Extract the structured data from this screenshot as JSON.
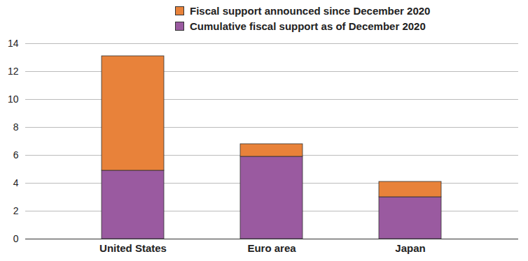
{
  "chart_data": {
    "type": "bar",
    "stacked": true,
    "grid": true,
    "legend": "top",
    "categories": [
      "United States",
      "Euro area",
      "Japan"
    ],
    "series": [
      {
        "name": "Cumulative fiscal support as of December 2020",
        "color": "#9a5aa0",
        "values": [
          4.9,
          5.9,
          3.0
        ]
      },
      {
        "name": "Fiscal support announced since December 2020",
        "color": "#e8823a",
        "values": [
          8.2,
          0.9,
          1.1
        ]
      }
    ],
    "ylim": [
      0,
      14
    ],
    "yticks": [
      0,
      2,
      4,
      6,
      8,
      10,
      12,
      14
    ]
  }
}
